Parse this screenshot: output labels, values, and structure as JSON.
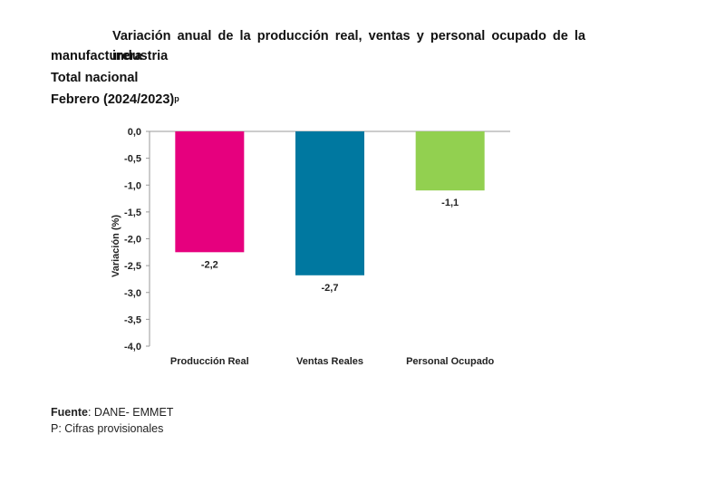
{
  "title": {
    "line1": "Variación anual de la producción real, ventas y personal ocupado de la industria",
    "line1b": "manufacturera",
    "line2": "Total nacional",
    "line3_main": "Febrero (2024/2023)",
    "line3_sup": "p"
  },
  "footer": {
    "source_label": "Fuente",
    "source_value": ": DANE- EMMET",
    "note": "P: Cifras provisionales"
  },
  "chart_data": {
    "type": "bar",
    "categories": [
      "Producción Real",
      "Ventas Reales",
      "Personal Ocupado"
    ],
    "values": [
      -2.25,
      -2.68,
      -1.1
    ],
    "data_labels": [
      "-2,2",
      "-2,7",
      "-1,1"
    ],
    "colors": [
      "#E6007E",
      "#0078A0",
      "#92D050"
    ],
    "ylabel": "Variación (%)",
    "ylim": [
      -4.0,
      0.0
    ],
    "yticks": [
      0.0,
      -0.5,
      -1.0,
      -1.5,
      -2.0,
      -2.5,
      -3.0,
      -3.5,
      -4.0
    ],
    "ytick_labels": [
      "0,0",
      "-0,5",
      "-1,0",
      "-1,5",
      "-2,0",
      "-2,5",
      "-3,0",
      "-3,5",
      "-4,0"
    ],
    "grid": false,
    "legend": "none"
  }
}
